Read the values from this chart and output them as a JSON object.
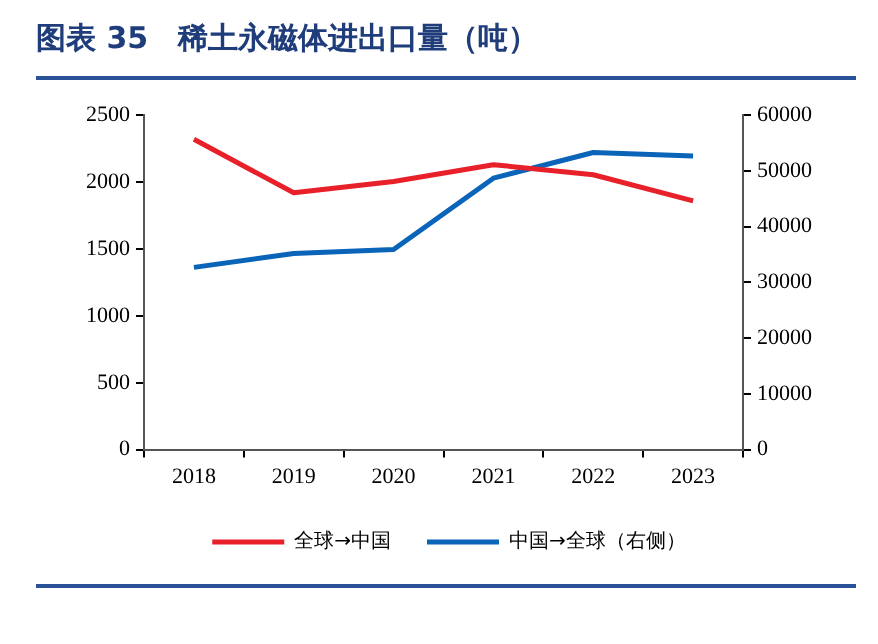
{
  "chart_data": {
    "type": "line",
    "title": "图表 35　稀土永磁体进出口量（吨）",
    "categories": [
      "2018",
      "2019",
      "2020",
      "2021",
      "2022",
      "2023"
    ],
    "series": [
      {
        "name": "全球→中国",
        "color": "#e8202a",
        "values": [
          2320,
          1920,
          2005,
          2130,
          2055,
          1860
        ]
      },
      {
        "name": "中国→全球（右侧）",
        "color": "#0a64b8",
        "axis": "y2",
        "values": [
          32700,
          35200,
          35900,
          48700,
          53300,
          52700
        ]
      }
    ],
    "ylim": [
      0,
      2500
    ],
    "yticks": [
      0,
      500,
      1000,
      1500,
      2000,
      2500
    ],
    "y2lim": [
      0,
      60000
    ],
    "y2ticks": [
      0,
      10000,
      20000,
      30000,
      40000,
      50000,
      60000
    ],
    "grid": false,
    "legend": "bottom",
    "marker": "none",
    "line_style": "solid"
  }
}
